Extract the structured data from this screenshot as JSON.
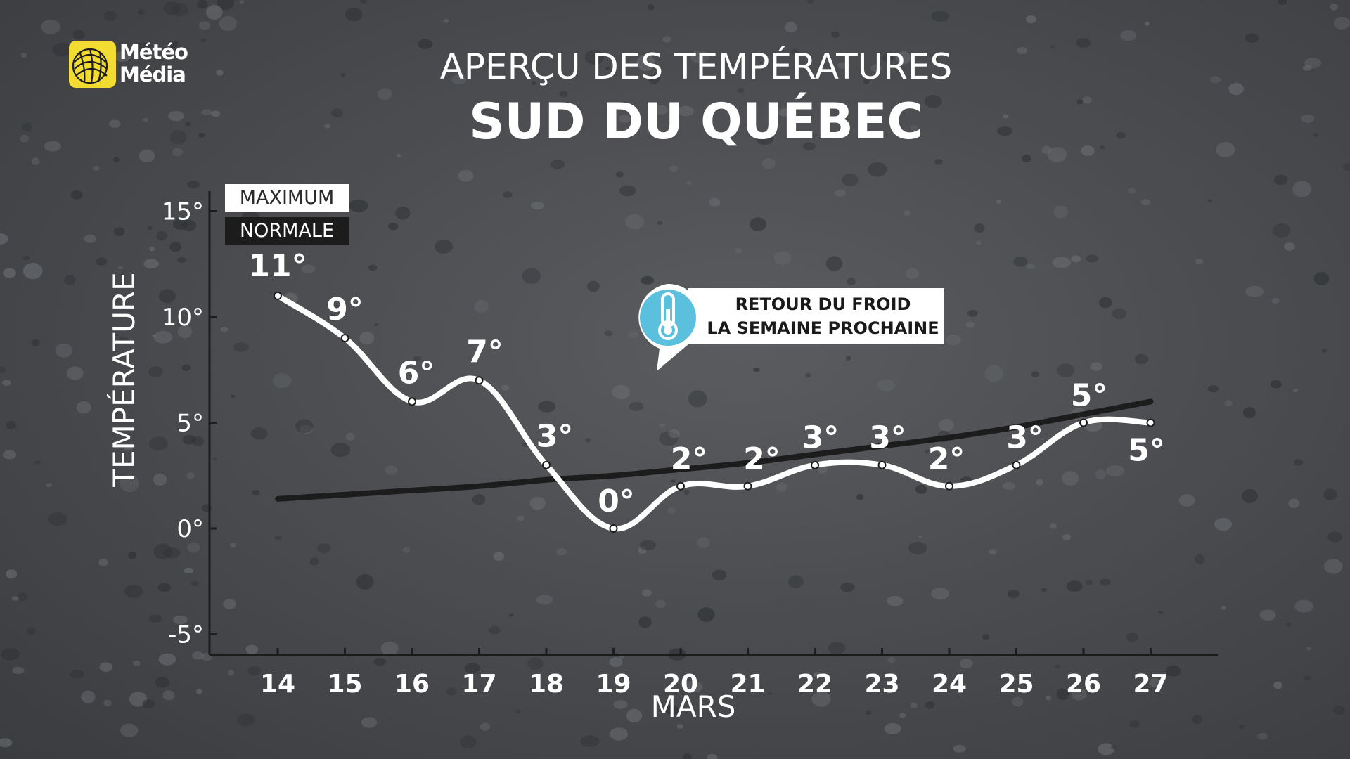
{
  "brand": {
    "line1": "Météo",
    "line2": "Média",
    "accent": "#f2dc32"
  },
  "title": {
    "line1": "APERÇU DES TEMPÉRATURES",
    "line2": "SUD DU QUÉBEC"
  },
  "legend": {
    "max_label": "MAXIMUM",
    "normal_label": "NORMALE"
  },
  "callout": {
    "line1": "RETOUR DU FROID",
    "line2": "LA SEMAINE PROCHAINE",
    "icon": "thermometer-icon",
    "icon_color": "#5bc0de"
  },
  "chart_data": {
    "type": "line",
    "title": "SUD DU QUÉBEC",
    "xlabel": "MARS",
    "ylabel": "TEMPÉRATURE",
    "categories": [
      "14",
      "15",
      "16",
      "17",
      "18",
      "19",
      "20",
      "21",
      "22",
      "23",
      "24",
      "25",
      "26",
      "27"
    ],
    "ylim": [
      -5,
      15
    ],
    "yticks": [
      -5,
      0,
      5,
      10,
      15
    ],
    "ytick_labels": [
      "-5°",
      "0°",
      "5°",
      "10°",
      "15°"
    ],
    "series": [
      {
        "name": "MAXIMUM",
        "values": [
          11,
          9,
          6,
          7,
          3,
          0,
          2,
          2,
          3,
          3,
          2,
          3,
          5,
          5
        ],
        "labels": [
          "11°",
          "9°",
          "6°",
          "7°",
          "3°",
          "0°",
          "2°",
          "2°",
          "3°",
          "3°",
          "2°",
          "3°",
          "5°",
          "5°"
        ],
        "color": "#ffffff"
      },
      {
        "name": "NORMALE",
        "values": [
          1.4,
          1.6,
          1.8,
          2.0,
          2.3,
          2.5,
          2.8,
          3.1,
          3.5,
          3.9,
          4.3,
          4.8,
          5.4,
          6.0
        ],
        "color": "#1c1c1c"
      }
    ],
    "grid": false,
    "legend_position": "top-left"
  }
}
